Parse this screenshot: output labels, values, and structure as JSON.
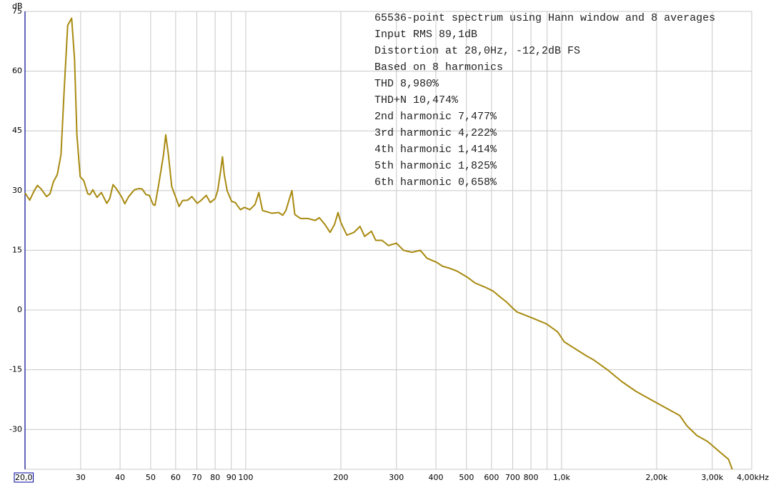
{
  "chart_data": {
    "type": "line",
    "annotations": [
      "65536-point spectrum using Hann window and 8 averages",
      "Input RMS 89,1dB",
      "Distortion at 28,0Hz, -12,2dB FS",
      "Based on 8 harmonics",
      "THD 8,980%",
      "THD+N 10,474%",
      "2nd harmonic 7,477%",
      "3rd harmonic 4,222%",
      "4th harmonic 1,414%",
      "5th harmonic 1,825%",
      "6th harmonic 0,658%"
    ],
    "ylabel": "dB",
    "log_x": true,
    "grid": true,
    "xlim": [
      20,
      4000
    ],
    "ylim": [
      -40,
      75
    ],
    "yticks": [
      75,
      60,
      45,
      30,
      15,
      0,
      -15,
      -30
    ],
    "xticks": [
      {
        "value": 20,
        "label": "20,0"
      },
      30,
      40,
      50,
      60,
      70,
      80,
      90,
      100,
      200,
      300,
      400,
      500,
      600,
      700,
      800,
      {
        "value": 900,
        "label": null
      },
      {
        "value": 1000,
        "label": "1,0k"
      },
      {
        "value": 2000,
        "label": "2,00k"
      },
      {
        "value": 3000,
        "label": "3,00k"
      },
      {
        "value": 4000,
        "label": "4,00kHz"
      }
    ],
    "x": [
      20,
      20.7,
      21.4,
      21.9,
      22.5,
      23.4,
      24,
      24.6,
      25.3,
      26,
      26.6,
      27.3,
      28.1,
      28.7,
      29.2,
      29.9,
      30.7,
      31.6,
      32.1,
      32.8,
      33.8,
      34.9,
      36.3,
      37.1,
      38,
      38.9,
      40.4,
      41.4,
      42.6,
      44.4,
      45.8,
      47,
      48.3,
      49.5,
      50.9,
      51.6,
      53,
      54.9,
      55.8,
      56.9,
      58.3,
      59.9,
      61.5,
      63.1,
      65.5,
      67.5,
      70.2,
      72.1,
      75,
      77.2,
      80,
      81.5,
      83.3,
      84.4,
      85.5,
      87.3,
      90.2,
      92.6,
      96.2,
      99.1,
      103,
      107,
      110,
      113,
      121,
      127,
      131,
      134,
      140,
      143,
      149,
      157,
      166,
      171,
      178,
      185,
      191,
      196,
      200,
      209,
      220,
      230,
      238,
      250,
      258,
      270,
      283,
      300,
      316,
      336,
      357,
      375,
      402,
      420,
      442,
      466,
      504,
      532,
      574,
      606,
      634,
      670,
      700,
      723,
      808,
      897,
      972,
      1020,
      1108,
      1198,
      1262,
      1397,
      1553,
      1726,
      1917,
      2130,
      2367,
      2489,
      2680,
      2898,
      3209,
      3378,
      3470
    ],
    "series": [
      {
        "color": "#a88a10",
        "values": [
          29.4,
          27.6,
          30,
          31.3,
          30.4,
          28.5,
          29.2,
          32.2,
          34,
          39,
          55,
          71.5,
          73.3,
          63,
          44,
          33.5,
          32.5,
          29.2,
          29,
          30.2,
          28.3,
          29.5,
          26.8,
          28,
          31.5,
          30.5,
          28.5,
          26.7,
          28.5,
          30.2,
          30.5,
          30.4,
          29,
          28.8,
          26.5,
          26.3,
          31.5,
          39,
          44,
          39,
          31,
          28.5,
          26,
          27.5,
          27.6,
          28.5,
          26.8,
          27.5,
          28.8,
          27,
          28,
          30,
          35,
          38.5,
          34,
          30,
          27.3,
          27,
          25.2,
          25.8,
          25.2,
          26.5,
          29.5,
          25,
          24.3,
          24.5,
          23.8,
          25,
          30,
          24,
          23,
          23,
          22.5,
          23.2,
          21.5,
          19.5,
          21.5,
          24.5,
          22,
          18.8,
          19.5,
          21,
          18.5,
          19.8,
          17.5,
          17.5,
          16.2,
          16.8,
          15,
          14.5,
          15,
          13,
          12,
          11,
          10.5,
          9.8,
          8.2,
          6.8,
          5.7,
          4.8,
          3.5,
          2,
          0.5,
          -0.5,
          -2,
          -3.5,
          -5.5,
          -8,
          -9.8,
          -11.5,
          -12.5,
          -15,
          -18,
          -20.5,
          -22.5,
          -24.5,
          -26.5,
          -29,
          -31.5,
          -33,
          -36,
          -37.5,
          -40
        ]
      }
    ]
  }
}
